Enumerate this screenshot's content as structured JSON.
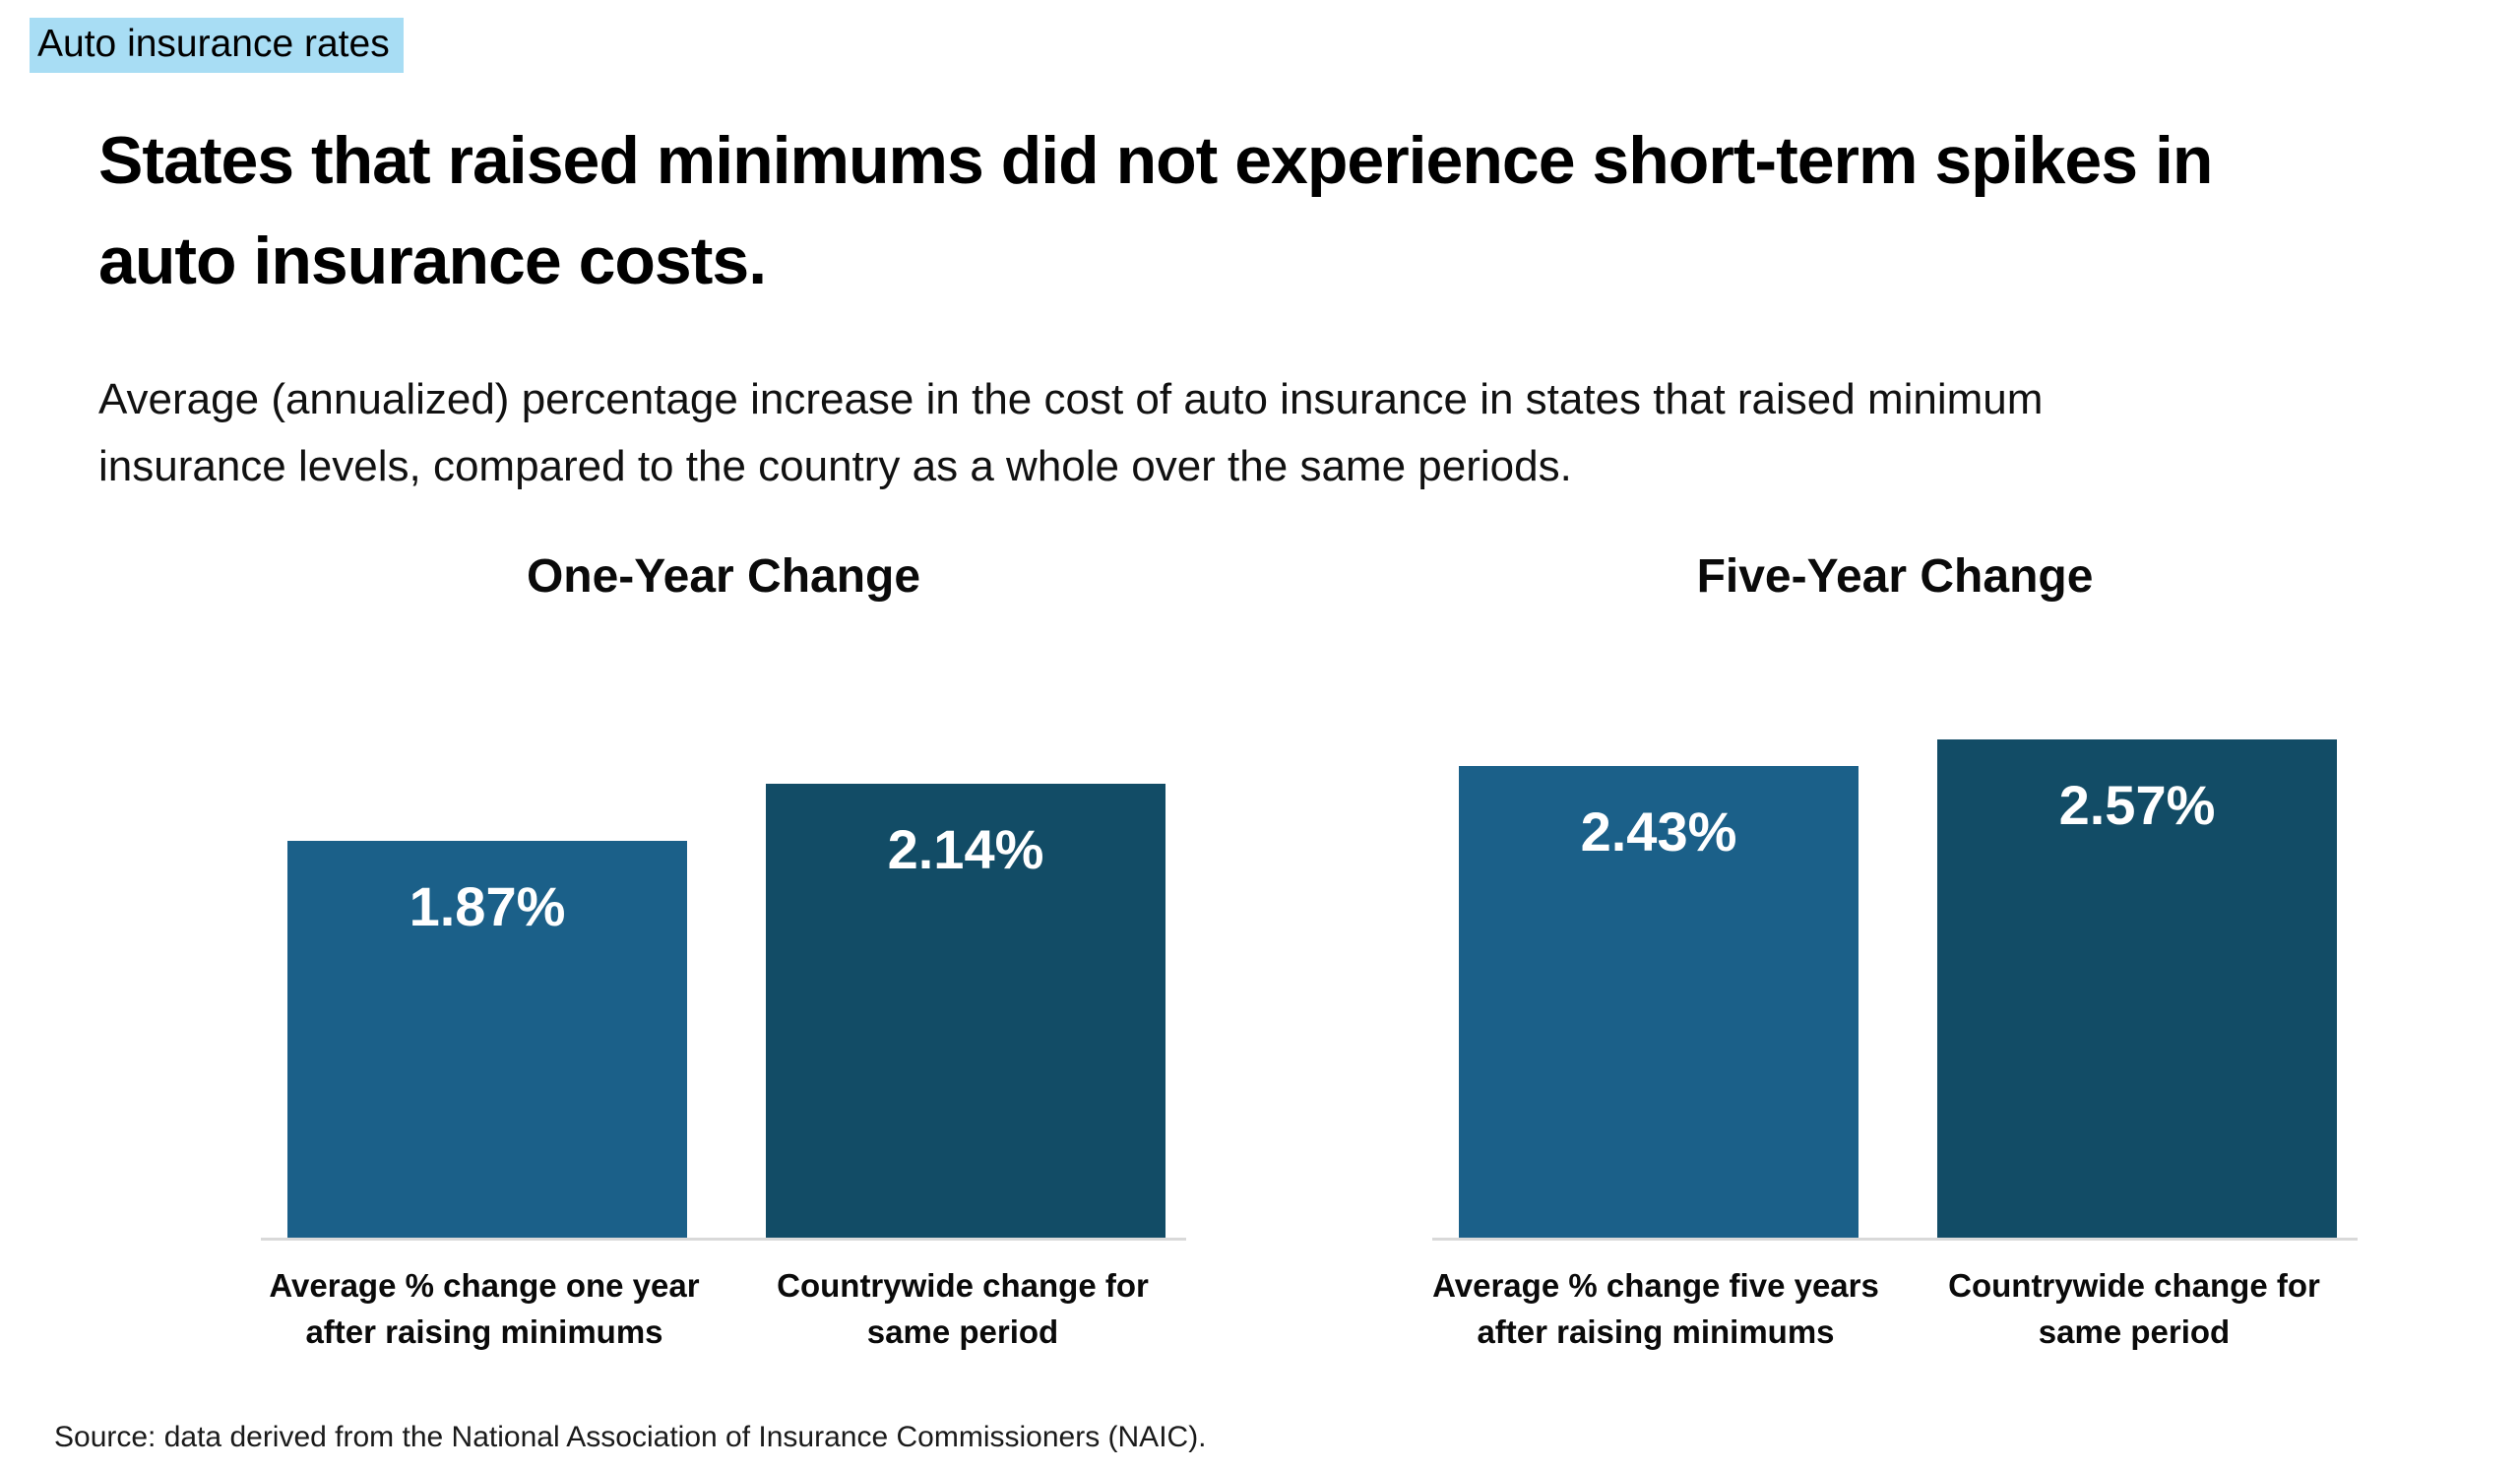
{
  "header": {
    "tag": "Auto insurance rates",
    "title": "States that raised minimums did not experience short-term spikes in auto insurance costs.",
    "subtitle": "Average (annualized) percentage increase in the cost of auto insurance in states that raised minimum insurance levels, compared to the country as a whole over the same periods."
  },
  "footer": {
    "source": "Source: data derived from the National Association of Insurance Commissioners (NAIC)."
  },
  "colors": {
    "highlight": "#a8ddf4",
    "bar-light": "#1b6089",
    "bar-dark": "#124c66",
    "baseline": "#d9d9d9",
    "text": "#0d0d0d"
  },
  "chart_data": [
    {
      "type": "bar",
      "title": "One-Year Change",
      "categories": [
        "Average % change one year after raising minimums",
        "Countrywide change for same period"
      ],
      "values": [
        1.87,
        2.14
      ],
      "value_labels": [
        "1.87%",
        "2.14%"
      ],
      "bar_colors": [
        "#1b6089",
        "#124c66"
      ],
      "ylim": [
        0,
        2.5
      ],
      "xlabel": "",
      "ylabel": "",
      "grid": false,
      "legend_position": "none",
      "value_labels_position": "inside-top"
    },
    {
      "type": "bar",
      "title": "Five-Year Change",
      "categories": [
        "Average % change five years after raising minimums",
        "Countrywide change for same period"
      ],
      "values": [
        2.43,
        2.57
      ],
      "value_labels": [
        "2.43%",
        "2.57%"
      ],
      "bar_colors": [
        "#1b6089",
        "#124c66"
      ],
      "ylim": [
        0,
        3.0
      ],
      "xlabel": "",
      "ylabel": "",
      "grid": false,
      "legend_position": "none",
      "value_labels_position": "inside-top"
    }
  ]
}
